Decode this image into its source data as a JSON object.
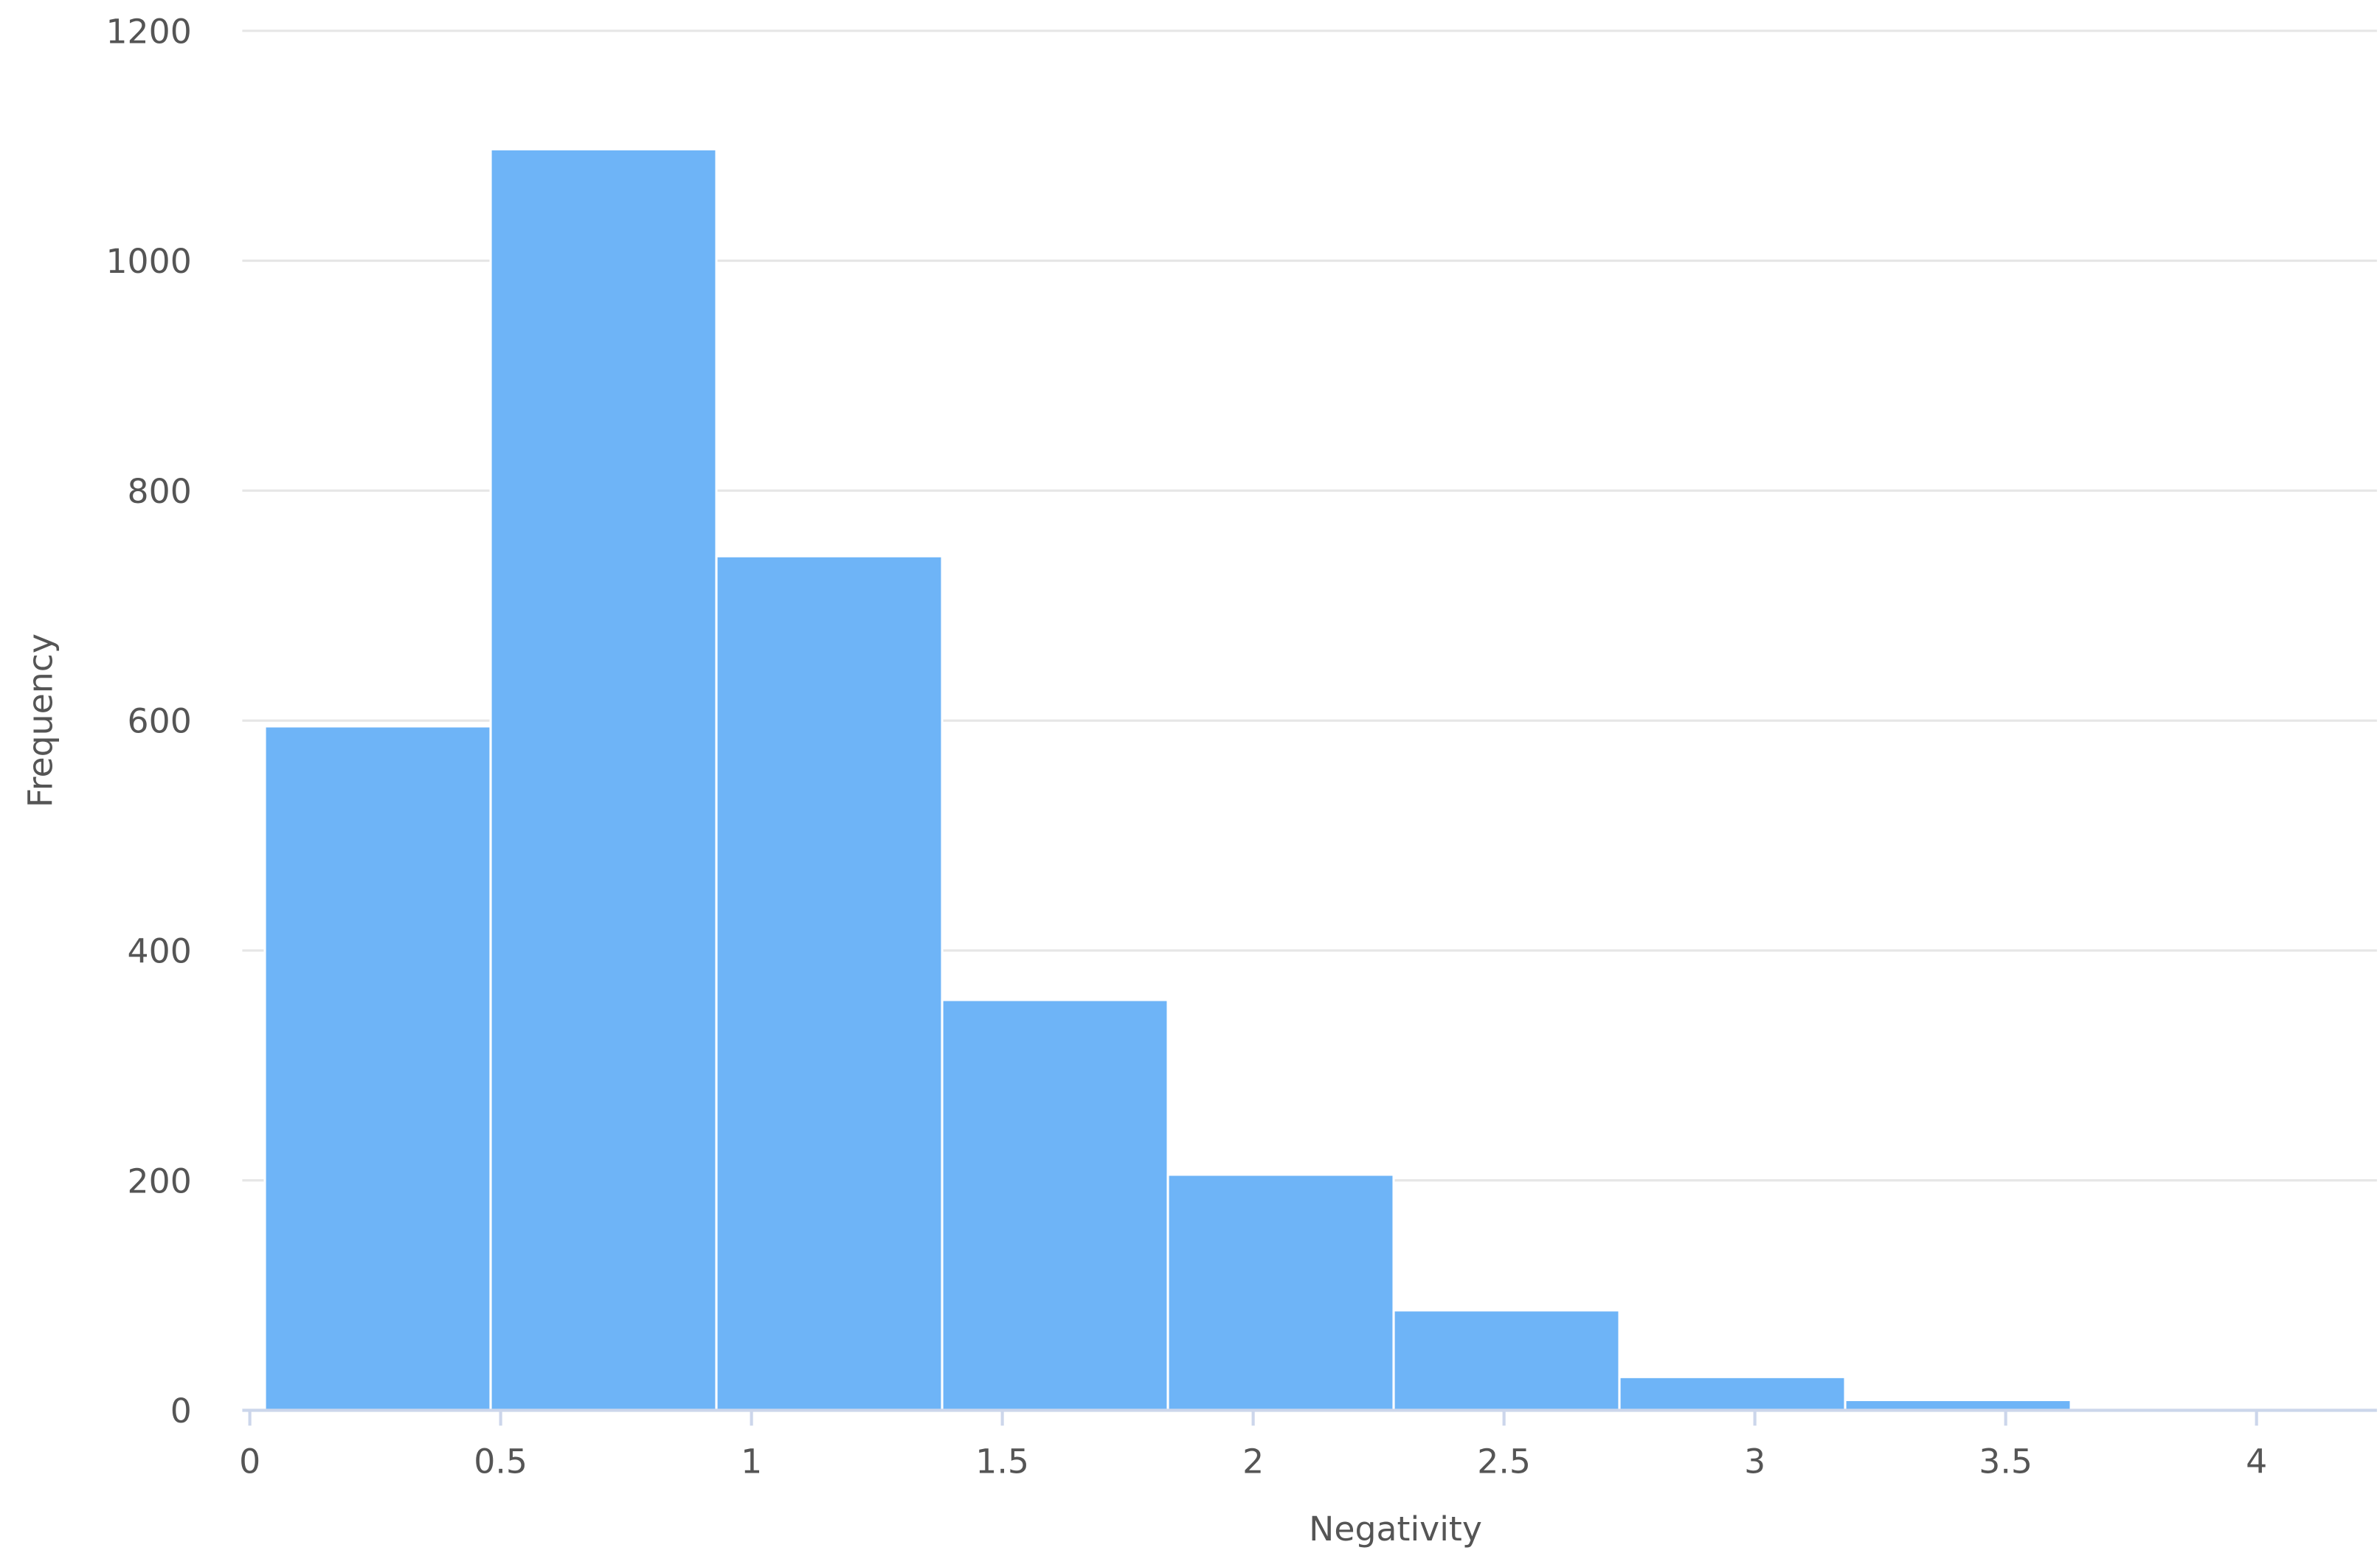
{
  "chart_data": {
    "type": "histogram",
    "x_label": "Negativity",
    "y_label": "Frequency",
    "bins": [
      0.03,
      0.48,
      0.93,
      1.38,
      1.83,
      2.28,
      2.73,
      3.18,
      3.63,
      4.08
    ],
    "values": [
      595,
      1097,
      743,
      357,
      205,
      87,
      29,
      9,
      2
    ],
    "color": "#6eb4f7",
    "xlim": [
      -0.015,
      4.24
    ],
    "xticks": [
      0,
      0.5,
      1,
      1.5,
      2,
      2.5,
      3,
      3.5,
      4
    ],
    "ylim": [
      0,
      1200
    ],
    "yticks": [
      0,
      200,
      400,
      600,
      800,
      1000,
      1200
    ],
    "grid": true
  }
}
